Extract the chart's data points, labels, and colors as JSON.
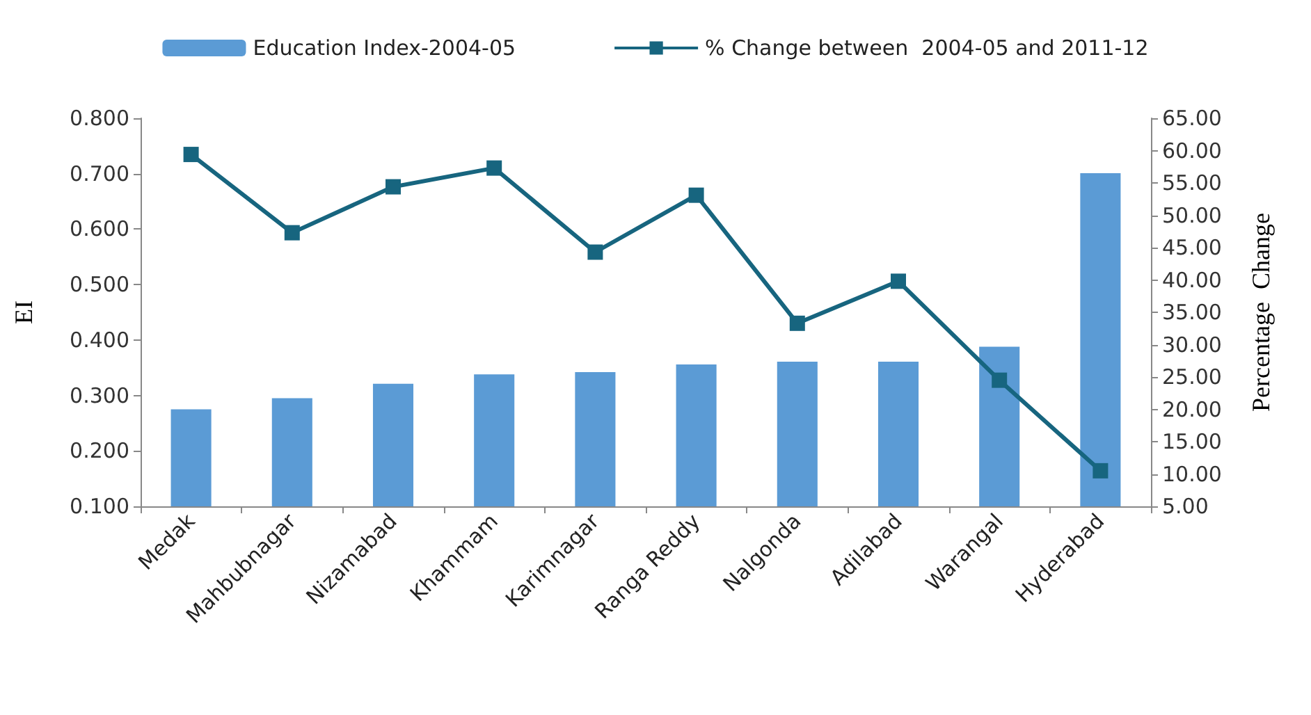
{
  "chart_data": {
    "type": "bar",
    "categories": [
      "Medak",
      "Mahbubnagar",
      "Nizamabad",
      "Khammam",
      "Karimnagar",
      "Ranga Reddy",
      "Nalgonda",
      "Adilabad",
      "Warangal",
      "Hyderabad"
    ],
    "series": [
      {
        "name": "Education Index-2004-05",
        "color": "#5b9bd5",
        "values": [
          0.275,
          0.295,
          0.321,
          0.338,
          0.342,
          0.356,
          0.361,
          0.361,
          0.388,
          0.701
        ]
      },
      {
        "name": "% Change between  2004-05 and 2011-12",
        "type": "line",
        "axis": "y2",
        "color": "#17657f",
        "marker": "square",
        "values": [
          59.4,
          47.3,
          54.4,
          57.3,
          44.3,
          53.1,
          33.3,
          39.8,
          24.5,
          10.5
        ]
      }
    ],
    "ylabel": "EI",
    "y2label": "Percentage  Change",
    "ylim": [
      0.1,
      0.8
    ],
    "yticks": [
      {
        "value": 0.1,
        "label": "0.100"
      },
      {
        "value": 0.2,
        "label": "0.200"
      },
      {
        "value": 0.3,
        "label": "0.300"
      },
      {
        "value": 0.4,
        "label": "0.400"
      },
      {
        "value": 0.5,
        "label": "0.500"
      },
      {
        "value": 0.6,
        "label": "0.600"
      },
      {
        "value": 0.7,
        "label": "0.700"
      },
      {
        "value": 0.8,
        "label": "0.800"
      }
    ],
    "y2lim": [
      5,
      65
    ],
    "y2ticks": [
      {
        "value": 5,
        "label": "5.00"
      },
      {
        "value": 10,
        "label": "10.00"
      },
      {
        "value": 15,
        "label": "15.00"
      },
      {
        "value": 20,
        "label": "20.00"
      },
      {
        "value": 25,
        "label": "25.00"
      },
      {
        "value": 30,
        "label": "30.00"
      },
      {
        "value": 35,
        "label": "35.00"
      },
      {
        "value": 40,
        "label": "40.00"
      },
      {
        "value": 45,
        "label": "45.00"
      },
      {
        "value": 50,
        "label": "50.00"
      },
      {
        "value": 55,
        "label": "55.00"
      },
      {
        "value": 60,
        "label": "60.00"
      },
      {
        "value": 65,
        "label": "65.00"
      }
    ],
    "grid": false,
    "legend": "top"
  }
}
